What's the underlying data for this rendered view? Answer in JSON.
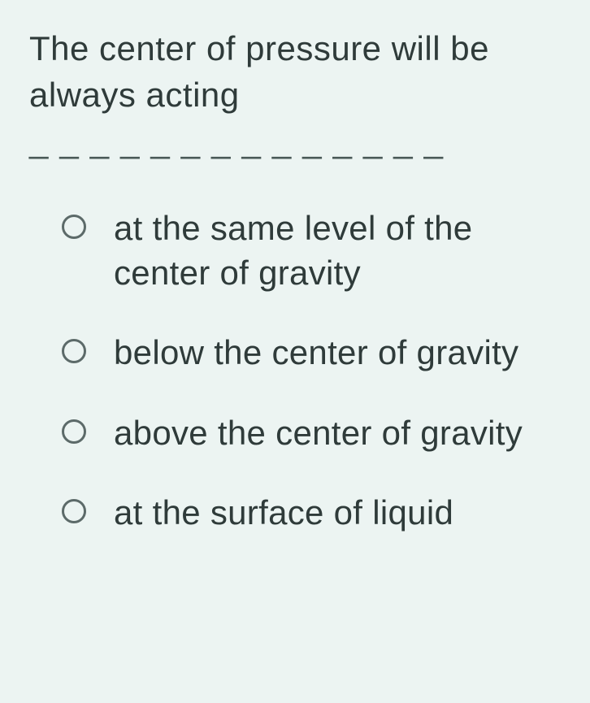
{
  "question": {
    "line1": "The center of pressure will be",
    "line2": "always acting",
    "blank": "______________"
  },
  "options": [
    {
      "label": "at the same level of the center of gravity",
      "selected": false
    },
    {
      "label": "below the center of gravity",
      "selected": false
    },
    {
      "label": "above the center of gravity",
      "selected": false
    },
    {
      "label": "at the surface of liquid",
      "selected": false
    }
  ],
  "colors": {
    "background": "#ecf4f2",
    "text": "#2f3b3a",
    "radio_border": "#5c6a69"
  },
  "typography": {
    "question_fontsize": 42,
    "option_fontsize": 42,
    "font_family": "Century Gothic"
  }
}
